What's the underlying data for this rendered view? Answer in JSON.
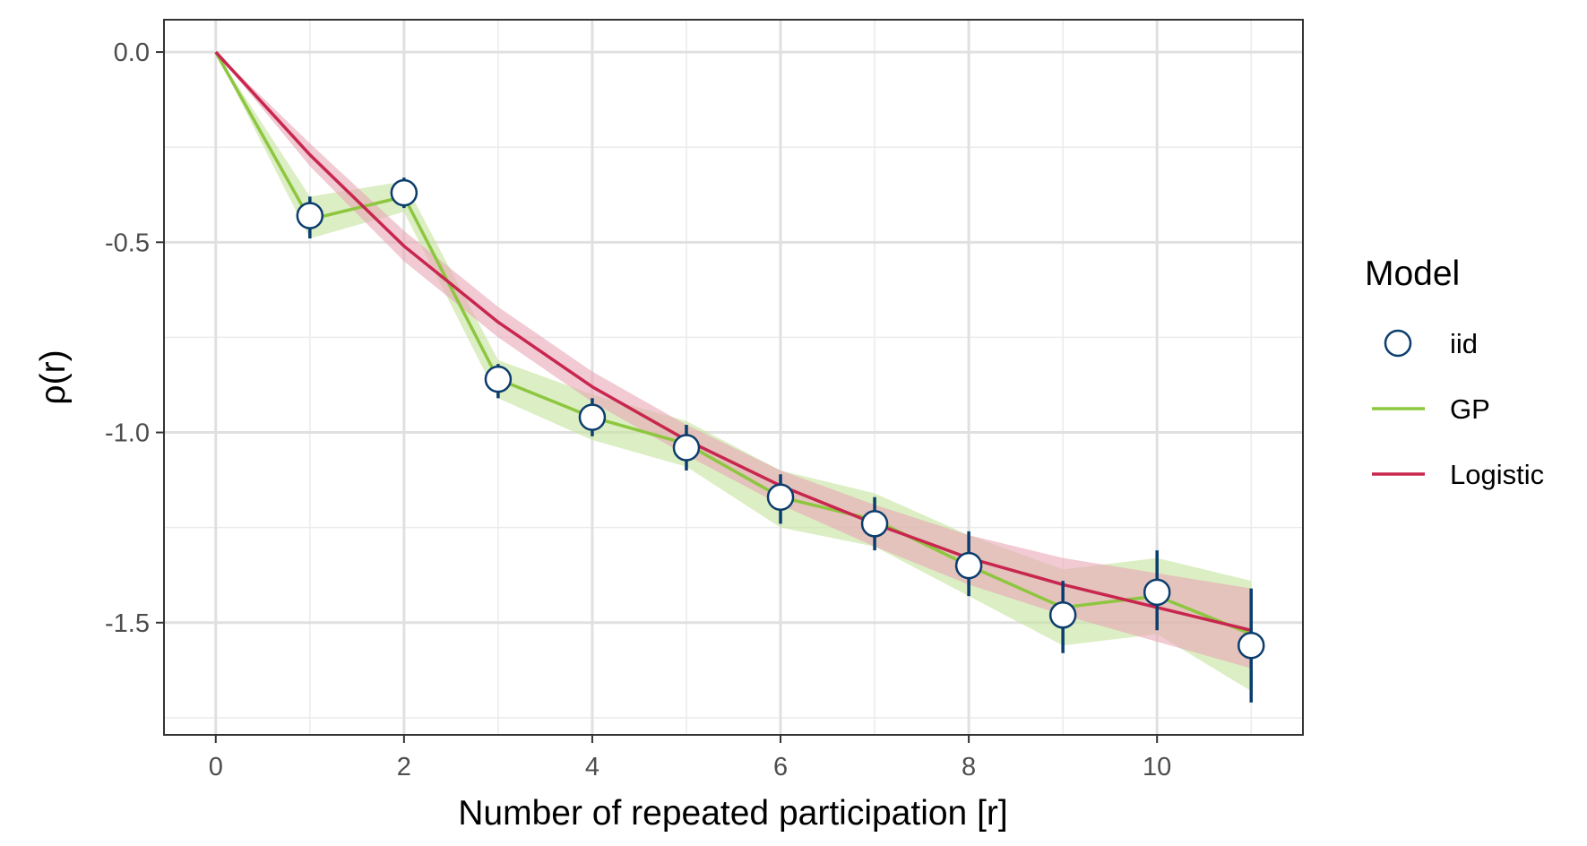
{
  "chart_data": {
    "type": "line",
    "xlabel": "Number of repeated participation [r]",
    "ylabel": "ρ(r)",
    "xlim": [
      -0.55,
      11.55
    ],
    "ylim": [
      -1.795,
      0.085
    ],
    "x_ticks": [
      0,
      2,
      4,
      6,
      8,
      10
    ],
    "x_tick_labels": [
      "0",
      "2",
      "4",
      "6",
      "8",
      "10"
    ],
    "y_ticks": [
      0.0,
      -0.5,
      -1.0,
      -1.5
    ],
    "y_tick_labels": [
      "0.0",
      "-0.5",
      "-1.0",
      "-1.5"
    ],
    "grid": true,
    "legend": {
      "title": "Model",
      "placement": "right",
      "entries": [
        {
          "label": "iid",
          "marker": "open-circle"
        },
        {
          "label": "GP",
          "marker": "line"
        },
        {
          "label": "Logistic",
          "marker": "line"
        }
      ]
    },
    "series": [
      {
        "name": "iid",
        "kind": "points-with-errorbars",
        "color": "#0b3d6e",
        "x": [
          1,
          2,
          3,
          4,
          5,
          6,
          7,
          8,
          9,
          10,
          11
        ],
        "y": [
          -0.43,
          -0.37,
          -0.86,
          -0.96,
          -1.04,
          -1.17,
          -1.24,
          -1.35,
          -1.48,
          -1.42,
          -1.56
        ],
        "ymin": [
          -0.49,
          -0.41,
          -0.91,
          -1.01,
          -1.1,
          -1.24,
          -1.31,
          -1.43,
          -1.58,
          -1.52,
          -1.71
        ],
        "ymax": [
          -0.38,
          -0.33,
          -0.82,
          -0.91,
          -0.98,
          -1.11,
          -1.17,
          -1.26,
          -1.39,
          -1.31,
          -1.41
        ]
      },
      {
        "name": "GP",
        "kind": "line-with-ribbon",
        "color": "#8dc63f",
        "ribbon_color": "#c5e39b",
        "x": [
          0,
          1,
          2,
          3,
          4,
          5,
          6,
          7,
          8,
          9,
          10,
          11
        ],
        "y": [
          0.0,
          -0.44,
          -0.38,
          -0.86,
          -0.96,
          -1.03,
          -1.17,
          -1.23,
          -1.35,
          -1.46,
          -1.43,
          -1.53
        ],
        "ymin": [
          0.0,
          -0.49,
          -0.42,
          -0.91,
          -1.02,
          -1.09,
          -1.25,
          -1.3,
          -1.43,
          -1.56,
          -1.53,
          -1.68
        ],
        "ymax": [
          0.0,
          -0.38,
          -0.34,
          -0.81,
          -0.9,
          -0.97,
          -1.1,
          -1.16,
          -1.27,
          -1.36,
          -1.33,
          -1.39
        ]
      },
      {
        "name": "Logistic",
        "kind": "line-with-ribbon",
        "color": "#c8264f",
        "ribbon_color": "#e8a6b6",
        "x": [
          0,
          1,
          2,
          3,
          4,
          5,
          6,
          7,
          8,
          9,
          10,
          11
        ],
        "y": [
          0.0,
          -0.27,
          -0.51,
          -0.71,
          -0.88,
          -1.02,
          -1.14,
          -1.24,
          -1.33,
          -1.4,
          -1.46,
          -1.52
        ],
        "ymin": [
          0.0,
          -0.3,
          -0.55,
          -0.75,
          -0.92,
          -1.06,
          -1.19,
          -1.3,
          -1.4,
          -1.48,
          -1.55,
          -1.62
        ],
        "ymax": [
          0.0,
          -0.24,
          -0.47,
          -0.67,
          -0.84,
          -0.98,
          -1.1,
          -1.19,
          -1.27,
          -1.33,
          -1.37,
          -1.41
        ]
      }
    ]
  }
}
